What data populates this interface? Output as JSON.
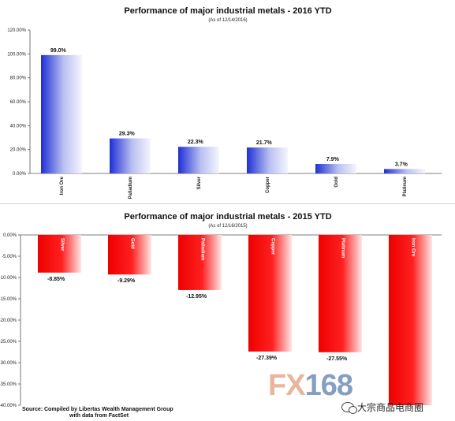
{
  "chart_data": [
    {
      "type": "bar",
      "title": "Performance of major industrial metals - 2016 YTD",
      "subtitle": "(As of 12/14/2016)",
      "categories": [
        "Iron Ore",
        "Palladium",
        "Silver",
        "Copper",
        "Gold",
        "Platinum"
      ],
      "values": [
        99.0,
        29.3,
        22.3,
        21.7,
        7.9,
        3.7
      ],
      "value_labels": [
        "99.0%",
        "29.3%",
        "22.3%",
        "21.7%",
        "7.9%",
        "3.7%"
      ],
      "ylim": [
        0,
        120
      ],
      "yticks": [
        "0.00%",
        "20.00%",
        "40.00%",
        "60.00%",
        "80.00%",
        "100.00%",
        "120.00%"
      ],
      "bar_color": "#2233dd",
      "grid": false
    },
    {
      "type": "bar",
      "title": "Performance of major industrial metals - 2015 YTD",
      "subtitle": "(As of 12/16/2015)",
      "categories": [
        "Silver",
        "Gold",
        "Palladium",
        "Copper",
        "Platinum",
        "Iron Ore"
      ],
      "values": [
        -8.85,
        -9.29,
        -12.95,
        -27.39,
        -27.55,
        -40.0
      ],
      "value_labels": [
        "-8.85%",
        "-9.29%",
        "-12.95%",
        "-27.39%",
        "-27.55%",
        ""
      ],
      "ylim": [
        -40,
        0
      ],
      "yticks": [
        "0.00%",
        "-5.00%",
        "-10.00%",
        "-15.00%",
        "-20.00%",
        "-25.00%",
        "-30.00%",
        "-35.00%",
        "-40.00%"
      ],
      "bar_color": "#ee0000",
      "grid": false
    }
  ],
  "source": {
    "line1": "Source:  Compiled by Libertas Wealth Management Group",
    "line2": "with data from FactSet"
  },
  "watermark": {
    "part1": "FX",
    "part2": "168"
  },
  "wechat": {
    "icon": "wechat-icon",
    "text": "大宗商品电商圈"
  }
}
